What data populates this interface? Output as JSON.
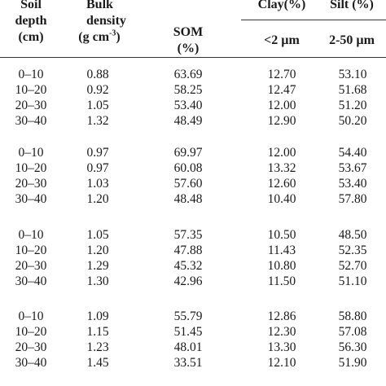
{
  "table": {
    "headers": {
      "soil_depth": [
        "Soil",
        "depth",
        "(cm)"
      ],
      "bulk_density": [
        "Bulk",
        "density",
        "(g cm",
        "-3",
        ")"
      ],
      "som": [
        "SOM",
        "(%)"
      ],
      "clay": [
        "Clay(%)",
        "<2 µm"
      ],
      "silt": [
        "Silt (%)",
        "2-50 µm"
      ]
    },
    "groups": [
      {
        "rows": [
          {
            "depth": "0–10",
            "bulk_density": "0.88",
            "som": "63.69",
            "clay": "12.70",
            "silt": "53.10"
          },
          {
            "depth": "10–20",
            "bulk_density": "0.92",
            "som": "58.25",
            "clay": "12.47",
            "silt": "51.68"
          },
          {
            "depth": "20–30",
            "bulk_density": "1.05",
            "som": "53.40",
            "clay": "12.00",
            "silt": "51.20"
          },
          {
            "depth": "30–40",
            "bulk_density": "1.32",
            "som": "48.49",
            "clay": "12.90",
            "silt": "50.20"
          }
        ]
      },
      {
        "rows": [
          {
            "depth": "0–10",
            "bulk_density": "0.97",
            "som": "69.97",
            "clay": "12.00",
            "silt": "54.40"
          },
          {
            "depth": "10–20",
            "bulk_density": "0.97",
            "som": "60.08",
            "clay": "13.32",
            "silt": "53.67"
          },
          {
            "depth": "20–30",
            "bulk_density": "1.03",
            "som": "57.60",
            "clay": "12.60",
            "silt": "53.40"
          },
          {
            "depth": "30–40",
            "bulk_density": "1.20",
            "som": "48.48",
            "clay": "10.40",
            "silt": "57.80"
          }
        ]
      },
      {
        "rows": [
          {
            "depth": "0–10",
            "bulk_density": "1.05",
            "som": "57.35",
            "clay": "10.50",
            "silt": "48.50"
          },
          {
            "depth": "10–20",
            "bulk_density": "1.20",
            "som": "47.88",
            "clay": "11.43",
            "silt": "52.35"
          },
          {
            "depth": "20–30",
            "bulk_density": "1.29",
            "som": "45.32",
            "clay": "10.80",
            "silt": "52.70"
          },
          {
            "depth": "30–40",
            "bulk_density": "1.30",
            "som": "42.96",
            "clay": "11.50",
            "silt": "51.10"
          }
        ]
      },
      {
        "rows": [
          {
            "depth": "0–10",
            "bulk_density": "1.09",
            "som": "55.79",
            "clay": "12.86",
            "silt": "58.80"
          },
          {
            "depth": "10–20",
            "bulk_density": "1.15",
            "som": "51.45",
            "clay": "12.30",
            "silt": "57.08"
          },
          {
            "depth": "20–30",
            "bulk_density": "1.23",
            "som": "48.01",
            "clay": "13.30",
            "silt": "56.30"
          },
          {
            "depth": "30–40",
            "bulk_density": "1.45",
            "som": "33.51",
            "clay": "12.10",
            "silt": "51.90"
          }
        ]
      }
    ]
  }
}
